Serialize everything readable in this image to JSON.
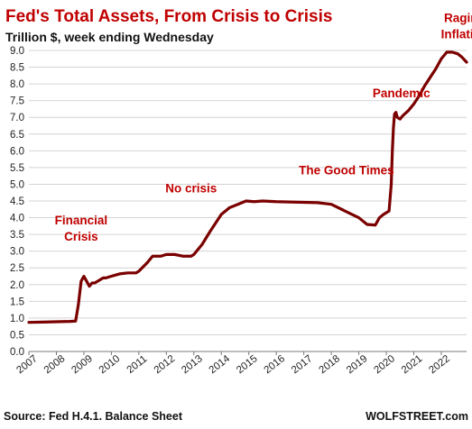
{
  "chart_data": {
    "type": "line",
    "title": "Fed's Total Assets, From Crisis to Crisis",
    "subtitle": "Trillion $, week ending Wednesday",
    "xlabel": "",
    "ylabel": "",
    "xlim": [
      2007.0,
      2022.92
    ],
    "ylim": [
      0.0,
      9.0
    ],
    "y_ticks": [
      "0.0",
      "0.5",
      "1.0",
      "1.5",
      "2.0",
      "2.5",
      "3.0",
      "3.5",
      "4.0",
      "4.5",
      "5.0",
      "5.5",
      "6.0",
      "6.5",
      "7.0",
      "7.5",
      "8.0",
      "8.5",
      "9.0"
    ],
    "x_ticks": [
      "2007",
      "2008",
      "2009",
      "2010",
      "2011",
      "2012",
      "2013",
      "2014",
      "2015",
      "2016",
      "2017",
      "2018",
      "2019",
      "2020",
      "2021",
      "2022"
    ],
    "grid": "horizontal",
    "series": [
      {
        "color": "#7a0000",
        "x": [
          2007.0,
          2007.5,
          2008.0,
          2008.5,
          2008.7,
          2008.8,
          2008.9,
          2009.0,
          2009.1,
          2009.2,
          2009.3,
          2009.4,
          2009.5,
          2009.6,
          2009.7,
          2009.8,
          2010.0,
          2010.3,
          2010.6,
          2010.9,
          2011.0,
          2011.3,
          2011.5,
          2011.8,
          2012.0,
          2012.3,
          2012.6,
          2012.9,
          2013.0,
          2013.3,
          2013.6,
          2014.0,
          2014.3,
          2014.6,
          2014.9,
          2015.2,
          2015.5,
          2016.0,
          2016.5,
          2017.0,
          2017.5,
          2018.0,
          2018.5,
          2019.0,
          2019.3,
          2019.6,
          2019.75,
          2019.9,
          2020.1,
          2020.18,
          2020.22,
          2020.26,
          2020.3,
          2020.35,
          2020.4,
          2020.5,
          2020.6,
          2020.8,
          2021.0,
          2021.2,
          2021.4,
          2021.6,
          2021.8,
          2022.0,
          2022.2,
          2022.4,
          2022.6,
          2022.75,
          2022.92
        ],
        "values": [
          0.87,
          0.88,
          0.89,
          0.9,
          0.91,
          1.4,
          2.1,
          2.25,
          2.1,
          1.95,
          2.05,
          2.05,
          2.1,
          2.15,
          2.2,
          2.2,
          2.25,
          2.32,
          2.35,
          2.35,
          2.4,
          2.65,
          2.85,
          2.85,
          2.9,
          2.9,
          2.85,
          2.85,
          2.9,
          3.2,
          3.6,
          4.1,
          4.3,
          4.4,
          4.5,
          4.48,
          4.5,
          4.48,
          4.47,
          4.46,
          4.45,
          4.4,
          4.2,
          4.0,
          3.8,
          3.78,
          4.0,
          4.1,
          4.2,
          5.0,
          6.0,
          6.7,
          7.1,
          7.15,
          7.0,
          6.95,
          7.05,
          7.2,
          7.4,
          7.65,
          7.95,
          8.2,
          8.45,
          8.75,
          8.95,
          8.95,
          8.9,
          8.8,
          8.65
        ]
      }
    ],
    "annotations": [
      {
        "text": "Financial",
        "x": 2008.9,
        "y": 3.8
      },
      {
        "text": "Crisis",
        "x": 2008.9,
        "y": 3.32
      },
      {
        "text": "No crisis",
        "x": 2012.9,
        "y": 4.75
      },
      {
        "text": "The Good Times",
        "x": 2018.55,
        "y": 5.3
      },
      {
        "text": "Pandemic",
        "x": 2020.55,
        "y": 7.6
      },
      {
        "text": "Raging",
        "x": 2022.85,
        "y": 9.85
      },
      {
        "text": "Inflation",
        "x": 2022.85,
        "y": 9.37
      }
    ],
    "source": "Source: Fed H.4.1. Balance Sheet",
    "brand": "WOLFSTREET.com"
  }
}
